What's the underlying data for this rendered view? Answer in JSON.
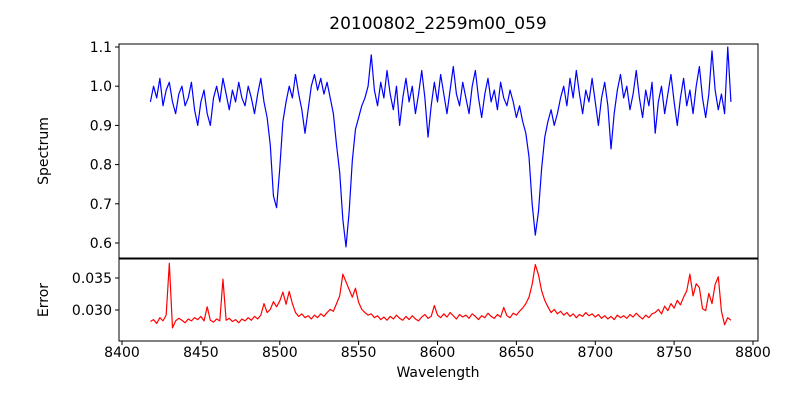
{
  "figure": {
    "title": "20100802_2259m00_059",
    "background": "#ffffff",
    "frame_color": "#000000"
  },
  "x_axis": {
    "label": "Wavelength",
    "ticks": [
      8400,
      8450,
      8500,
      8550,
      8600,
      8650,
      8700,
      8750,
      8800
    ],
    "tick_labels": [
      "8400",
      "8450",
      "8500",
      "8550",
      "8600",
      "8650",
      "8700",
      "8750",
      "8800"
    ],
    "xlim": [
      8399,
      8803
    ]
  },
  "chart_data": [
    {
      "type": "line",
      "name": "spectrum",
      "color": "#0000ff",
      "ylabel": "Spectrum",
      "ylim": [
        0.564,
        1.108
      ],
      "y_ticks": [
        0.6,
        0.7,
        0.8,
        0.9,
        1.0,
        1.1
      ],
      "y_tick_labels": [
        "0.6",
        "0.7",
        "0.8",
        "0.9",
        "1.0",
        "1.1"
      ],
      "x_start": 8418,
      "x_step": 2,
      "absorption_line_cores": [
        8498,
        8542,
        8662
      ],
      "values": [
        0.96,
        1.0,
        0.97,
        1.02,
        0.95,
        0.99,
        1.01,
        0.96,
        0.93,
        0.98,
        1.0,
        0.95,
        0.97,
        1.01,
        0.94,
        0.9,
        0.96,
        0.99,
        0.93,
        0.9,
        0.97,
        1.0,
        0.96,
        1.02,
        0.98,
        0.94,
        0.99,
        0.96,
        1.01,
        0.97,
        0.95,
        1.0,
        0.97,
        0.93,
        0.98,
        1.02,
        0.96,
        0.92,
        0.85,
        0.72,
        0.69,
        0.79,
        0.91,
        0.96,
        1.0,
        0.97,
        1.03,
        0.98,
        0.94,
        0.88,
        0.94,
        1.0,
        1.03,
        0.99,
        1.02,
        0.98,
        1.01,
        0.97,
        0.93,
        0.85,
        0.78,
        0.66,
        0.59,
        0.68,
        0.81,
        0.89,
        0.92,
        0.95,
        0.97,
        1.0,
        1.08,
        0.99,
        0.95,
        1.01,
        0.97,
        1.04,
        0.98,
        0.94,
        1.0,
        0.9,
        0.97,
        1.02,
        0.96,
        1.0,
        0.93,
        0.98,
        1.04,
        0.97,
        0.87,
        0.95,
        1.01,
        0.96,
        1.03,
        0.98,
        0.93,
        0.99,
        1.05,
        0.98,
        0.95,
        1.01,
        0.97,
        0.93,
        1.0,
        1.04,
        0.97,
        0.92,
        0.98,
        1.02,
        0.96,
        0.99,
        0.94,
        1.01,
        0.97,
        0.95,
        0.99,
        0.96,
        0.92,
        0.95,
        0.91,
        0.88,
        0.82,
        0.7,
        0.62,
        0.68,
        0.79,
        0.87,
        0.91,
        0.94,
        0.9,
        0.93,
        0.97,
        1.0,
        0.95,
        1.02,
        0.97,
        1.04,
        0.98,
        0.93,
        0.99,
        0.96,
        1.02,
        0.96,
        0.9,
        0.97,
        1.01,
        0.95,
        0.84,
        0.93,
        0.99,
        1.03,
        0.97,
        1.0,
        0.94,
        0.98,
        1.04,
        0.97,
        0.92,
        0.99,
        0.95,
        1.01,
        0.88,
        0.96,
        1.0,
        0.93,
        0.98,
        1.03,
        0.96,
        0.9,
        0.97,
        1.02,
        0.95,
        0.99,
        0.93,
        1.0,
        1.05,
        0.97,
        0.92,
        0.98,
        1.09,
        0.99,
        0.94,
        0.98,
        0.93,
        1.1,
        0.96
      ]
    },
    {
      "type": "line",
      "name": "error",
      "color": "#ff0000",
      "ylabel": "Error",
      "ylim": [
        0.0252,
        0.038
      ],
      "y_ticks": [
        0.03,
        0.035
      ],
      "y_tick_labels": [
        "0.030",
        "0.035"
      ],
      "x_start": 8418,
      "x_step": 2,
      "values": [
        0.0282,
        0.0285,
        0.0279,
        0.0288,
        0.0283,
        0.0292,
        0.0373,
        0.0272,
        0.0283,
        0.0287,
        0.0284,
        0.028,
        0.0286,
        0.0283,
        0.0288,
        0.0285,
        0.029,
        0.0283,
        0.0305,
        0.0284,
        0.0281,
        0.0286,
        0.0283,
        0.0348,
        0.0284,
        0.0287,
        0.0282,
        0.0285,
        0.028,
        0.0286,
        0.0283,
        0.0288,
        0.0284,
        0.029,
        0.0286,
        0.0292,
        0.031,
        0.0296,
        0.0301,
        0.0313,
        0.0305,
        0.0314,
        0.0328,
        0.0309,
        0.0329,
        0.031,
        0.0296,
        0.029,
        0.0294,
        0.0288,
        0.0291,
        0.0286,
        0.0292,
        0.0288,
        0.0294,
        0.029,
        0.0296,
        0.0301,
        0.0298,
        0.031,
        0.0322,
        0.0356,
        0.0344,
        0.0332,
        0.032,
        0.0334,
        0.0312,
        0.0301,
        0.0296,
        0.0292,
        0.0294,
        0.0288,
        0.0291,
        0.0285,
        0.0289,
        0.0284,
        0.029,
        0.0286,
        0.0292,
        0.0287,
        0.0284,
        0.029,
        0.0285,
        0.0291,
        0.0286,
        0.0283,
        0.0289,
        0.0293,
        0.0287,
        0.029,
        0.0307,
        0.0292,
        0.0288,
        0.0294,
        0.0289,
        0.0296,
        0.0291,
        0.0286,
        0.0293,
        0.0289,
        0.0292,
        0.0287,
        0.0294,
        0.029,
        0.0285,
        0.0291,
        0.0288,
        0.0295,
        0.029,
        0.0287,
        0.0293,
        0.0289,
        0.0304,
        0.0291,
        0.0288,
        0.0295,
        0.0292,
        0.0298,
        0.0303,
        0.031,
        0.032,
        0.034,
        0.0371,
        0.0355,
        0.033,
        0.0315,
        0.0305,
        0.0296,
        0.0301,
        0.0294,
        0.0298,
        0.0292,
        0.0296,
        0.029,
        0.0294,
        0.0288,
        0.0293,
        0.029,
        0.0296,
        0.0291,
        0.0294,
        0.0289,
        0.0293,
        0.0287,
        0.0291,
        0.0286,
        0.029,
        0.0285,
        0.0292,
        0.0288,
        0.0291,
        0.0287,
        0.0293,
        0.0289,
        0.0295,
        0.029,
        0.0286,
        0.0292,
        0.0288,
        0.0294,
        0.0296,
        0.0301,
        0.0294,
        0.0306,
        0.0299,
        0.031,
        0.0303,
        0.0315,
        0.0308,
        0.032,
        0.033,
        0.0356,
        0.0322,
        0.0341,
        0.0335,
        0.0302,
        0.0299,
        0.0326,
        0.031,
        0.034,
        0.0352,
        0.0298,
        0.0277,
        0.0288,
        0.0284
      ]
    }
  ]
}
